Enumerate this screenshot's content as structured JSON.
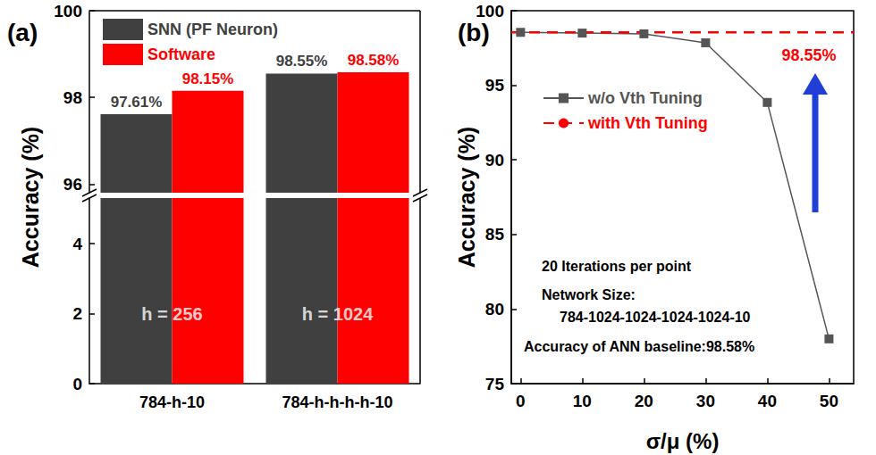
{
  "chart_data": [
    {
      "type": "bar",
      "title": "(a)",
      "ylabel": "Accuracy (%)",
      "categories": [
        "784-h-10",
        "784-h-h-h-h-10"
      ],
      "series": [
        {
          "name": "SNN (PF Neuron)",
          "color": "#404040",
          "values": [
            97.61,
            98.55
          ],
          "value_labels": [
            "97.61%",
            "98.55%"
          ]
        },
        {
          "name": "Software",
          "color": "#ff0000",
          "values": [
            98.15,
            98.58
          ],
          "value_labels": [
            "98.15%",
            "98.58%"
          ]
        }
      ],
      "ylim": [
        0,
        100
      ],
      "yticks": [
        0,
        2,
        4,
        96,
        98,
        100
      ],
      "ybreak": [
        5.3,
        95.8
      ],
      "data_labels": true,
      "legend": "upper left",
      "annotations": [
        {
          "text": "h = 256",
          "x": "784-h-10",
          "y": 2
        },
        {
          "text": "h = 1024",
          "x": "784-h-h-h-h-10",
          "y": 2
        }
      ]
    },
    {
      "type": "line",
      "title": "(b)",
      "xlabel": "σ/μ (%)",
      "ylabel": "Accuracy (%)",
      "xlim": [
        -1.5,
        54
      ],
      "xticks": [
        0,
        10,
        20,
        30,
        40,
        50
      ],
      "ylim": [
        75,
        100
      ],
      "yticks": [
        75,
        80,
        85,
        90,
        95,
        100
      ],
      "series": [
        {
          "name": "w/o Vth Tuning",
          "color": "#555555",
          "x": [
            0,
            10,
            20,
            30,
            40,
            50
          ],
          "values": [
            98.55,
            98.5,
            98.45,
            97.85,
            93.85,
            78.0
          ],
          "marker": "square",
          "line_style": "solid"
        },
        {
          "name": "with Vth Tuning",
          "color": "#ff0000",
          "x": [
            -1.5,
            54
          ],
          "values": [
            98.55,
            98.55
          ],
          "marker": "none",
          "line_style": "dashed"
        }
      ],
      "legend": "upper left",
      "annotations": [
        {
          "text": "98.55%",
          "color": "#ff0000"
        },
        {
          "text": "20 Iterations per point"
        },
        {
          "text": "Network Size:"
        },
        {
          "text": "784-1024-1024-1024-1024-10"
        },
        {
          "text": "Accuracy of ANN baseline:98.58%"
        }
      ]
    }
  ]
}
